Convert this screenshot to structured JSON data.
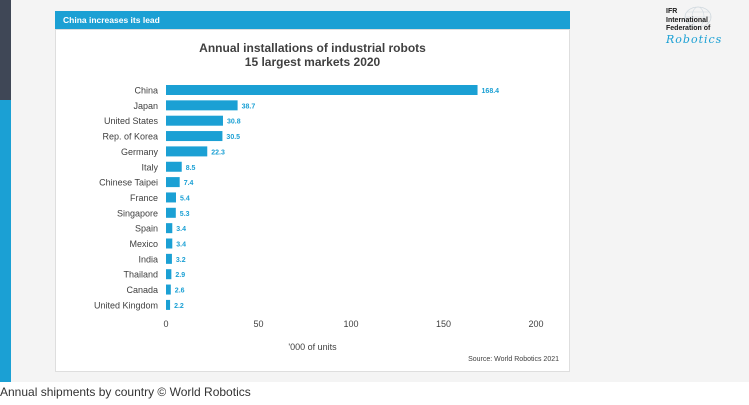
{
  "banner": "China increases its lead",
  "logo": {
    "lines": [
      "IFR",
      "International",
      "Federation of"
    ],
    "script": "Robotics"
  },
  "caption": "Annual shipments by country © World Robotics",
  "chart_data": {
    "type": "bar",
    "orientation": "horizontal",
    "title": "Annual installations of industrial robots",
    "subtitle": "15 largest markets 2020",
    "xlabel": "'000 of units",
    "source": "Source: World Robotics 2021",
    "categories": [
      "China",
      "Japan",
      "United States",
      "Rep. of Korea",
      "Germany",
      "Italy",
      "Chinese Taipei",
      "France",
      "Singapore",
      "Spain",
      "Mexico",
      "India",
      "Thailand",
      "Canada",
      "United Kingdom"
    ],
    "values": [
      168.4,
      38.7,
      30.8,
      30.5,
      22.3,
      8.5,
      7.4,
      5.4,
      5.3,
      3.4,
      3.4,
      3.2,
      2.9,
      2.6,
      2.2
    ],
    "value_labels": [
      "168.4",
      "38.7",
      "30.8",
      "30.5",
      "22.3",
      "8.5",
      "7.4",
      "5.4",
      "5.3",
      "3.4",
      "3.4",
      "3.2",
      "2.9",
      "2.6",
      "2.2"
    ],
    "xticks": [
      0,
      50,
      100,
      150,
      200
    ],
    "xlim": [
      0,
      200
    ],
    "bar_color": "#1ba0d4",
    "label_color": "#1ba0d4",
    "grid": false,
    "legend": "none"
  }
}
